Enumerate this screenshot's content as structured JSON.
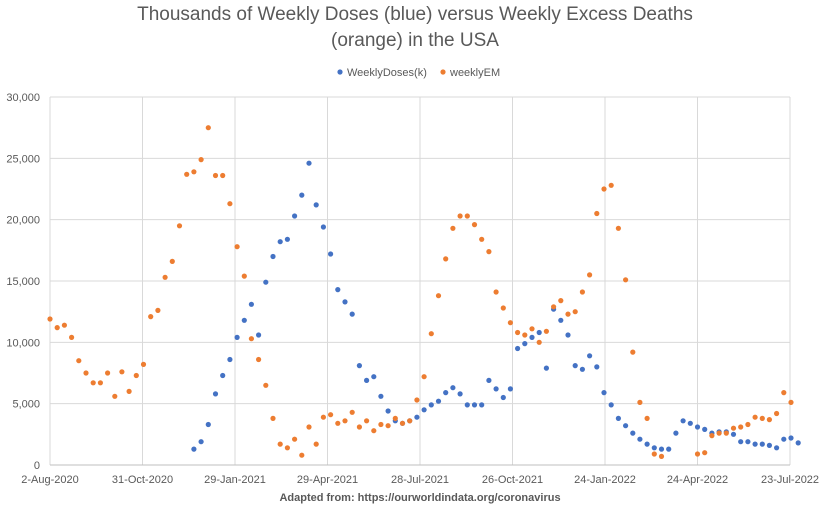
{
  "chart_data": {
    "type": "scatter",
    "title_lines": [
      "Thousands of Weekly Doses (blue) versus Weekly Excess Deaths",
      "(orange) in the USA"
    ],
    "footnote": "Adapted from: https://ourworldindata.org/coronavirus",
    "xlabel": "",
    "ylabel": "",
    "x_axis": {
      "type": "date",
      "range": [
        "2020-08-02",
        "2022-07-23"
      ],
      "tick_labels": [
        "2-Aug-2020",
        "31-Oct-2020",
        "29-Jan-2021",
        "29-Apr-2021",
        "28-Jul-2021",
        "26-Oct-2021",
        "24-Jan-2022",
        "24-Apr-2022",
        "23-Jul-2022"
      ],
      "tick_dates": [
        "2020-08-02",
        "2020-10-31",
        "2021-01-29",
        "2021-04-29",
        "2021-07-28",
        "2021-10-26",
        "2022-01-24",
        "2022-04-24",
        "2022-07-23"
      ]
    },
    "y_axis": {
      "range": [
        0,
        30000
      ],
      "tick_labels": [
        "0",
        "5,000",
        "10,000",
        "15,000",
        "20,000",
        "25,000",
        "30,000"
      ],
      "tick_values": [
        0,
        5000,
        10000,
        15000,
        20000,
        25000,
        30000
      ]
    },
    "grid": true,
    "legend_position": "top-center",
    "series": [
      {
        "name": "WeeklyDoses(k)",
        "color": "#4472c4",
        "points": [
          [
            "2020-12-20",
            1300
          ],
          [
            "2020-12-27",
            1900
          ],
          [
            "2021-01-03",
            3300
          ],
          [
            "2021-01-10",
            5800
          ],
          [
            "2021-01-17",
            7300
          ],
          [
            "2021-01-24",
            8600
          ],
          [
            "2021-01-31",
            10400
          ],
          [
            "2021-02-07",
            11800
          ],
          [
            "2021-02-14",
            13100
          ],
          [
            "2021-02-21",
            10600
          ],
          [
            "2021-02-28",
            14900
          ],
          [
            "2021-03-07",
            17000
          ],
          [
            "2021-03-14",
            18200
          ],
          [
            "2021-03-21",
            18400
          ],
          [
            "2021-03-28",
            20300
          ],
          [
            "2021-04-04",
            22000
          ],
          [
            "2021-04-11",
            24600
          ],
          [
            "2021-04-18",
            21200
          ],
          [
            "2021-04-25",
            19400
          ],
          [
            "2021-05-02",
            17200
          ],
          [
            "2021-05-09",
            14300
          ],
          [
            "2021-05-16",
            13300
          ],
          [
            "2021-05-23",
            12300
          ],
          [
            "2021-05-30",
            8100
          ],
          [
            "2021-06-06",
            6900
          ],
          [
            "2021-06-13",
            7200
          ],
          [
            "2021-06-20",
            5600
          ],
          [
            "2021-06-27",
            4400
          ],
          [
            "2021-07-04",
            3600
          ],
          [
            "2021-07-11",
            3400
          ],
          [
            "2021-07-18",
            3600
          ],
          [
            "2021-07-25",
            3900
          ],
          [
            "2021-08-01",
            4500
          ],
          [
            "2021-08-08",
            4900
          ],
          [
            "2021-08-15",
            5200
          ],
          [
            "2021-08-22",
            5900
          ],
          [
            "2021-08-29",
            6300
          ],
          [
            "2021-09-05",
            5800
          ],
          [
            "2021-09-12",
            4900
          ],
          [
            "2021-09-19",
            4900
          ],
          [
            "2021-09-26",
            4900
          ],
          [
            "2021-10-03",
            6900
          ],
          [
            "2021-10-10",
            6200
          ],
          [
            "2021-10-17",
            5500
          ],
          [
            "2021-10-24",
            6200
          ],
          [
            "2021-10-31",
            9500
          ],
          [
            "2021-11-07",
            9900
          ],
          [
            "2021-11-14",
            10400
          ],
          [
            "2021-11-21",
            10800
          ],
          [
            "2021-11-28",
            7900
          ],
          [
            "2021-12-05",
            12700
          ],
          [
            "2021-12-12",
            11800
          ],
          [
            "2021-12-19",
            10600
          ],
          [
            "2021-12-26",
            8100
          ],
          [
            "2022-01-02",
            7800
          ],
          [
            "2022-01-09",
            8900
          ],
          [
            "2022-01-16",
            8000
          ],
          [
            "2022-01-23",
            5900
          ],
          [
            "2022-01-30",
            4900
          ],
          [
            "2022-02-06",
            3800
          ],
          [
            "2022-02-13",
            3200
          ],
          [
            "2022-02-20",
            2600
          ],
          [
            "2022-02-27",
            2100
          ],
          [
            "2022-03-06",
            1700
          ],
          [
            "2022-03-13",
            1400
          ],
          [
            "2022-03-20",
            1300
          ],
          [
            "2022-03-27",
            1300
          ],
          [
            "2022-04-03",
            2600
          ],
          [
            "2022-04-10",
            3600
          ],
          [
            "2022-04-17",
            3400
          ],
          [
            "2022-04-24",
            3100
          ],
          [
            "2022-05-01",
            2900
          ],
          [
            "2022-05-08",
            2600
          ],
          [
            "2022-05-15",
            2700
          ],
          [
            "2022-05-22",
            2700
          ],
          [
            "2022-05-29",
            2500
          ],
          [
            "2022-06-05",
            1900
          ],
          [
            "2022-06-12",
            1900
          ],
          [
            "2022-06-19",
            1700
          ],
          [
            "2022-06-26",
            1700
          ],
          [
            "2022-07-03",
            1600
          ],
          [
            "2022-07-10",
            1400
          ],
          [
            "2022-07-17",
            2100
          ],
          [
            "2022-07-24",
            2200
          ],
          [
            "2022-07-31",
            1800
          ]
        ]
      },
      {
        "name": "weeklyEM",
        "color": "#ed7d31",
        "points": [
          [
            "2020-08-02",
            11900
          ],
          [
            "2020-08-09",
            11200
          ],
          [
            "2020-08-16",
            11400
          ],
          [
            "2020-08-23",
            10400
          ],
          [
            "2020-08-30",
            8500
          ],
          [
            "2020-09-06",
            7500
          ],
          [
            "2020-09-13",
            6700
          ],
          [
            "2020-09-20",
            6700
          ],
          [
            "2020-09-27",
            7500
          ],
          [
            "2020-10-04",
            5600
          ],
          [
            "2020-10-11",
            7600
          ],
          [
            "2020-10-18",
            6000
          ],
          [
            "2020-10-25",
            7300
          ],
          [
            "2020-11-01",
            8200
          ],
          [
            "2020-11-08",
            12100
          ],
          [
            "2020-11-15",
            12600
          ],
          [
            "2020-11-22",
            15300
          ],
          [
            "2020-11-29",
            16600
          ],
          [
            "2020-12-06",
            19500
          ],
          [
            "2020-12-13",
            23700
          ],
          [
            "2020-12-20",
            23900
          ],
          [
            "2020-12-27",
            24900
          ],
          [
            "2021-01-03",
            27500
          ],
          [
            "2021-01-10",
            23600
          ],
          [
            "2021-01-17",
            23600
          ],
          [
            "2021-01-24",
            21300
          ],
          [
            "2021-01-31",
            17800
          ],
          [
            "2021-02-07",
            15400
          ],
          [
            "2021-02-14",
            10300
          ],
          [
            "2021-02-21",
            8600
          ],
          [
            "2021-02-28",
            6500
          ],
          [
            "2021-03-07",
            3800
          ],
          [
            "2021-03-14",
            1700
          ],
          [
            "2021-03-21",
            1400
          ],
          [
            "2021-03-28",
            2100
          ],
          [
            "2021-04-04",
            800
          ],
          [
            "2021-04-11",
            3100
          ],
          [
            "2021-04-18",
            1700
          ],
          [
            "2021-04-25",
            3900
          ],
          [
            "2021-05-02",
            4100
          ],
          [
            "2021-05-09",
            3400
          ],
          [
            "2021-05-16",
            3600
          ],
          [
            "2021-05-23",
            4300
          ],
          [
            "2021-05-30",
            3100
          ],
          [
            "2021-06-06",
            3600
          ],
          [
            "2021-06-13",
            2800
          ],
          [
            "2021-06-20",
            3300
          ],
          [
            "2021-06-27",
            3200
          ],
          [
            "2021-07-04",
            3800
          ],
          [
            "2021-07-11",
            3400
          ],
          [
            "2021-07-18",
            3600
          ],
          [
            "2021-07-25",
            5300
          ],
          [
            "2021-08-01",
            7200
          ],
          [
            "2021-08-08",
            10700
          ],
          [
            "2021-08-15",
            13800
          ],
          [
            "2021-08-22",
            16800
          ],
          [
            "2021-08-29",
            19300
          ],
          [
            "2021-09-05",
            20300
          ],
          [
            "2021-09-12",
            20300
          ],
          [
            "2021-09-19",
            19600
          ],
          [
            "2021-09-26",
            18400
          ],
          [
            "2021-10-03",
            17400
          ],
          [
            "2021-10-10",
            14100
          ],
          [
            "2021-10-17",
            12800
          ],
          [
            "2021-10-24",
            11600
          ],
          [
            "2021-10-31",
            10800
          ],
          [
            "2021-11-07",
            10600
          ],
          [
            "2021-11-14",
            11100
          ],
          [
            "2021-11-21",
            10000
          ],
          [
            "2021-11-28",
            10900
          ],
          [
            "2021-12-05",
            12900
          ],
          [
            "2021-12-12",
            13400
          ],
          [
            "2021-12-19",
            12300
          ],
          [
            "2021-12-26",
            12500
          ],
          [
            "2022-01-02",
            14100
          ],
          [
            "2022-01-09",
            15500
          ],
          [
            "2022-01-16",
            20500
          ],
          [
            "2022-01-23",
            22500
          ],
          [
            "2022-01-30",
            22800
          ],
          [
            "2022-02-06",
            19300
          ],
          [
            "2022-02-13",
            15100
          ],
          [
            "2022-02-20",
            9200
          ],
          [
            "2022-02-27",
            5100
          ],
          [
            "2022-03-06",
            3800
          ],
          [
            "2022-03-13",
            900
          ],
          [
            "2022-03-20",
            700
          ],
          [
            "2022-04-24",
            900
          ],
          [
            "2022-05-01",
            1000
          ],
          [
            "2022-05-08",
            2400
          ],
          [
            "2022-05-15",
            2600
          ],
          [
            "2022-05-22",
            2600
          ],
          [
            "2022-05-29",
            3000
          ],
          [
            "2022-06-05",
            3100
          ],
          [
            "2022-06-12",
            3300
          ],
          [
            "2022-06-19",
            3900
          ],
          [
            "2022-06-26",
            3800
          ],
          [
            "2022-07-03",
            3700
          ],
          [
            "2022-07-10",
            4200
          ],
          [
            "2022-07-17",
            5900
          ],
          [
            "2022-07-24",
            5100
          ]
        ]
      }
    ]
  }
}
